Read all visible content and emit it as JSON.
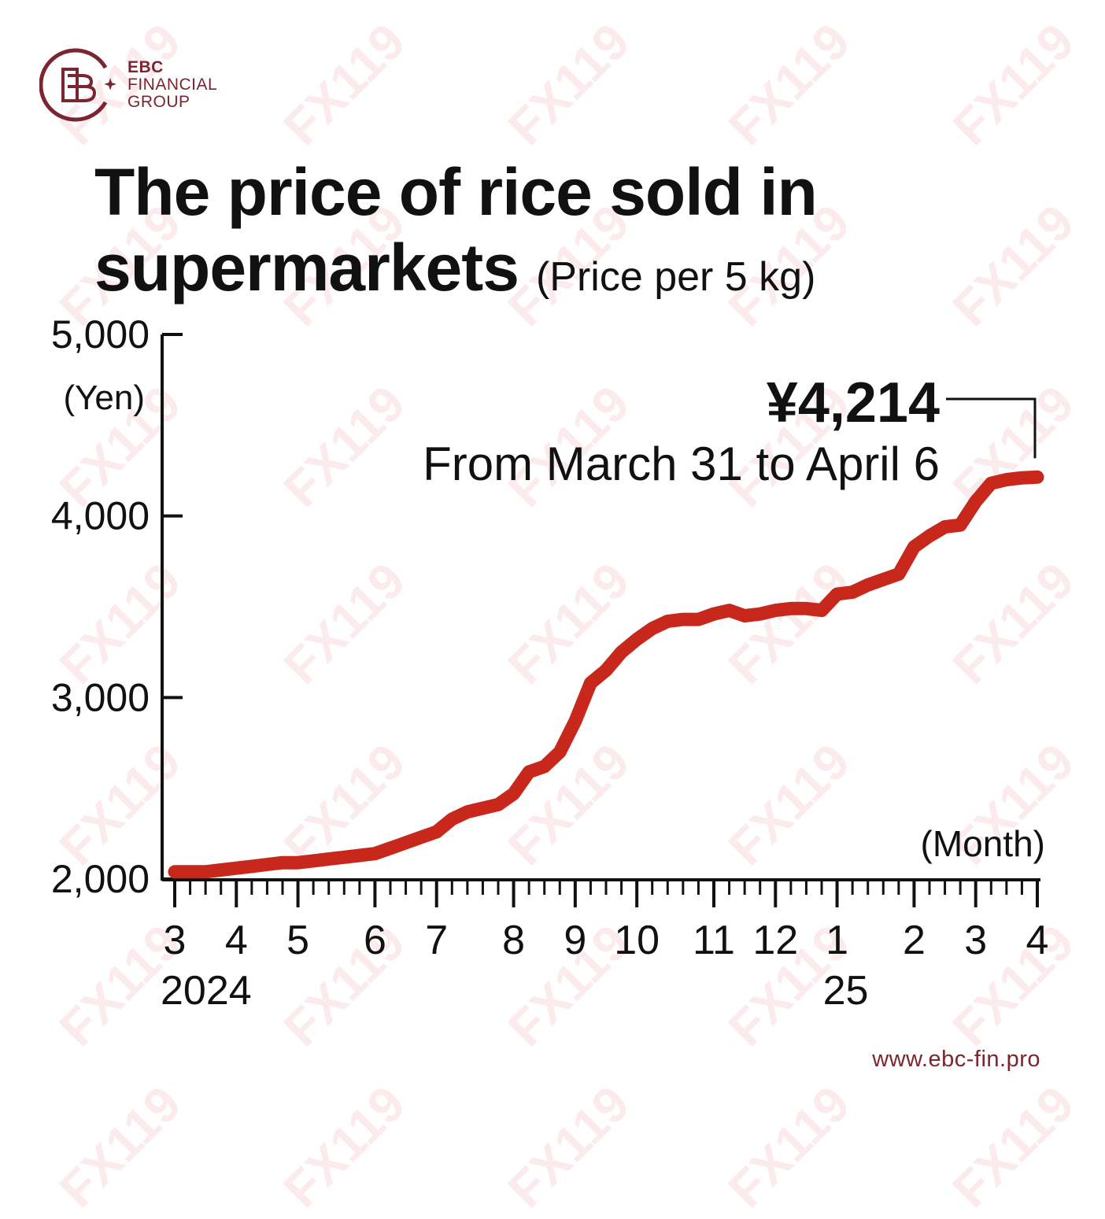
{
  "brand": {
    "name_line1": "EBC",
    "name_line2": "FINANCIAL",
    "name_line3": "GROUP",
    "url": "www.ebc-fin.pro",
    "color": "#7a2530",
    "watermark": "FX119"
  },
  "chart_data": {
    "type": "line",
    "title": "The price of rice sold in supermarkets",
    "subtitle": "(Price per 5 kg)",
    "ylabel": "(Yen)",
    "xlabel": "(Month)",
    "ylim": [
      2000,
      5000
    ],
    "yticks": [
      {
        "value": 2000,
        "label": "2,000"
      },
      {
        "value": 3000,
        "label": "3,000"
      },
      {
        "value": 4000,
        "label": "4,000"
      },
      {
        "value": 5000,
        "label": "5,000"
      }
    ],
    "xlim": [
      0,
      56
    ],
    "xticks": [
      {
        "week": 0,
        "label": "3"
      },
      {
        "week": 4,
        "label": "4"
      },
      {
        "week": 8,
        "label": "5"
      },
      {
        "week": 13,
        "label": "6"
      },
      {
        "week": 17,
        "label": "7"
      },
      {
        "week": 22,
        "label": "8"
      },
      {
        "week": 26,
        "label": "9"
      },
      {
        "week": 30,
        "label": "10"
      },
      {
        "week": 35,
        "label": "11"
      },
      {
        "week": 39,
        "label": "12"
      },
      {
        "week": 43,
        "label": "1"
      },
      {
        "week": 48,
        "label": "2"
      },
      {
        "week": 52,
        "label": "3"
      },
      {
        "week": 56,
        "label": "4"
      }
    ],
    "year_labels": [
      {
        "week": 0,
        "label": "2024"
      },
      {
        "week": 43,
        "label": "25"
      }
    ],
    "series": [
      {
        "color": "#c8281c",
        "points": [
          [
            0,
            2040
          ],
          [
            1,
            2040
          ],
          [
            2,
            2040
          ],
          [
            3,
            2050
          ],
          [
            4,
            2060
          ],
          [
            5,
            2070
          ],
          [
            6,
            2080
          ],
          [
            7,
            2090
          ],
          [
            8,
            2090
          ],
          [
            9,
            2100
          ],
          [
            10,
            2110
          ],
          [
            11,
            2120
          ],
          [
            12,
            2130
          ],
          [
            13,
            2140
          ],
          [
            14,
            2170
          ],
          [
            15,
            2200
          ],
          [
            16,
            2230
          ],
          [
            17,
            2260
          ],
          [
            18,
            2330
          ],
          [
            19,
            2370
          ],
          [
            20,
            2390
          ],
          [
            21,
            2410
          ],
          [
            22,
            2470
          ],
          [
            23,
            2590
          ],
          [
            24,
            2620
          ],
          [
            25,
            2700
          ],
          [
            26,
            2870
          ],
          [
            27,
            3080
          ],
          [
            28,
            3150
          ],
          [
            29,
            3250
          ],
          [
            30,
            3320
          ],
          [
            31,
            3380
          ],
          [
            32,
            3420
          ],
          [
            33,
            3430
          ],
          [
            34,
            3430
          ],
          [
            35,
            3460
          ],
          [
            36,
            3480
          ],
          [
            37,
            3450
          ],
          [
            38,
            3460
          ],
          [
            39,
            3480
          ],
          [
            40,
            3490
          ],
          [
            41,
            3490
          ],
          [
            42,
            3480
          ],
          [
            43,
            3570
          ],
          [
            44,
            3580
          ],
          [
            45,
            3620
          ],
          [
            46,
            3650
          ],
          [
            47,
            3680
          ],
          [
            48,
            3830
          ],
          [
            49,
            3890
          ],
          [
            50,
            3940
          ],
          [
            51,
            3950
          ],
          [
            52,
            4080
          ],
          [
            53,
            4180
          ],
          [
            54,
            4200
          ],
          [
            55,
            4210
          ],
          [
            56,
            4214
          ]
        ]
      }
    ],
    "annotation": {
      "value_label": "¥4,214",
      "text": "From March 31 to April 6",
      "week": 56,
      "value": 4214
    },
    "grid": false,
    "legend": "none"
  }
}
